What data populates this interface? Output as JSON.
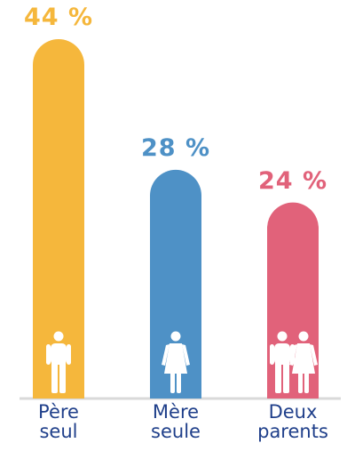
{
  "chart_data": {
    "type": "bar",
    "categories": [
      "Père\nseul",
      "Mère\nseule",
      "Deux\nparents"
    ],
    "values": [
      44,
      28,
      24
    ],
    "value_labels": [
      "44 %",
      "28 %",
      "24 %"
    ],
    "ylim": [
      0,
      44
    ],
    "colors": [
      "#f5b73c",
      "#4e91c6",
      "#e1627a"
    ],
    "icons": [
      "man-icon",
      "woman-icon",
      "couple-icon"
    ],
    "baseline_color": "#d9d9d9",
    "category_label_color": "#1f3f8a"
  }
}
